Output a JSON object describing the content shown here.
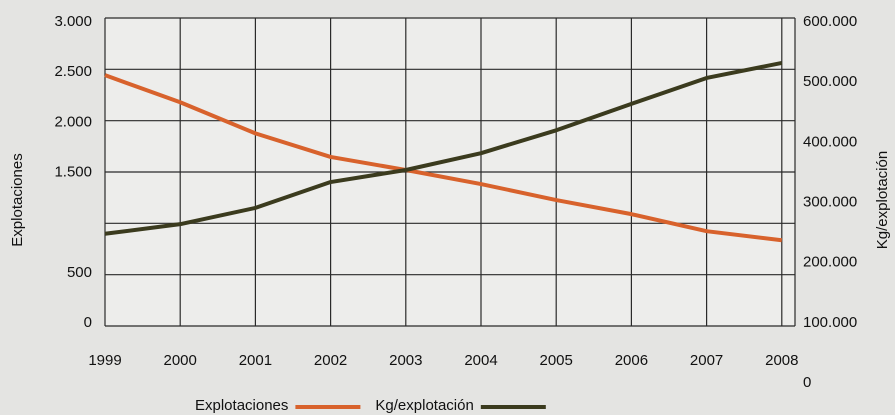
{
  "chart_data": {
    "type": "line",
    "categories": [
      "1999",
      "2000",
      "2001",
      "2002",
      "2003",
      "2004",
      "2005",
      "2006",
      "2007",
      "2008"
    ],
    "y_label": "Explotaciones",
    "y2_label": "Kg/explotación",
    "ylim": [
      0,
      3000
    ],
    "yticks": [
      0,
      {
        "value": 500,
        "label": "500"
      },
      {
        "value": 1500,
        "label": "1.500"
      },
      {
        "value": 2000,
        "label": "2.000"
      },
      {
        "value": 2500,
        "label": "2.500"
      },
      {
        "value": 3000,
        "label": "3.000"
      }
    ],
    "y2lim": [
      0,
      600000
    ],
    "y2ticks": [
      0,
      {
        "value": 100000,
        "label": "100.000"
      },
      {
        "value": 200000,
        "label": "200.000"
      },
      {
        "value": 300000,
        "label": "300.000"
      },
      {
        "value": 400000,
        "label": "400.000"
      },
      {
        "value": 500000,
        "label": "500.000"
      },
      {
        "value": 600000,
        "label": "600.000"
      }
    ],
    "series": [
      {
        "name": "Explotaciones",
        "color": "#d8622c",
        "values": [
          2470,
          2200,
          1890,
          1655,
          1525,
          1385,
          1225,
          1085,
          915,
          825
        ]
      },
      {
        "name": "Kg/explotación",
        "color": "#3b3b1e",
        "axis": "y2",
        "values": [
          248000,
          264000,
          291000,
          334000,
          354000,
          382000,
          420000,
          464000,
          507000,
          532000
        ]
      }
    ]
  }
}
